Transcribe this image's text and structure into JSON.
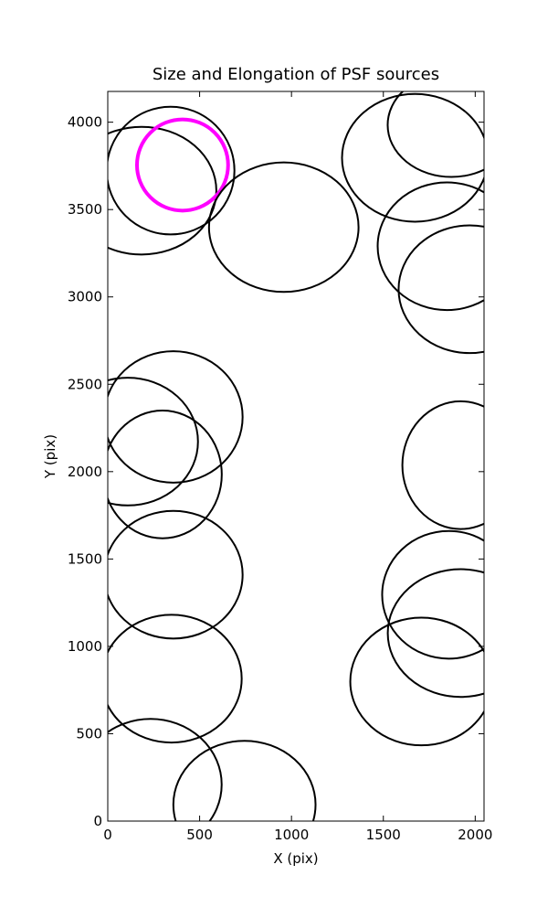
{
  "chart_data": {
    "type": "ellipse",
    "title": "Size and Elongation of PSF sources",
    "xlabel": "X (pix)",
    "ylabel": "Y (pix)",
    "x": [
      342,
      184,
      407,
      958,
      1672,
      1871,
      1846,
      1970,
      357,
      109,
      298,
      1921,
      357,
      1856,
      1921,
      347,
      1707,
      233,
      744
    ],
    "y": [
      3723,
      3608,
      3755,
      3399,
      3796,
      3984,
      3290,
      3044,
      2313,
      2172,
      1984,
      2037,
      1410,
      1295,
      1076,
      815,
      799,
      209,
      94
    ],
    "width": [
      695,
      814,
      496,
      814,
      794,
      695,
      754,
      774,
      754,
      764,
      645,
      635,
      754,
      725,
      794,
      764,
      774,
      774,
      774
    ],
    "height": [
      731,
      731,
      522,
      741,
      731,
      595,
      731,
      731,
      752,
      731,
      731,
      731,
      731,
      731,
      731,
      731,
      731,
      752,
      731
    ],
    "colors": [
      "#000000",
      "#000000",
      "#ff00ff",
      "#000000",
      "#000000",
      "#000000",
      "#000000",
      "#000000",
      "#000000",
      "#000000",
      "#000000",
      "#000000",
      "#000000",
      "#000000",
      "#000000",
      "#000000",
      "#000000",
      "#000000",
      "#000000"
    ],
    "linewidths": [
      2,
      2,
      4,
      2,
      2,
      2,
      2,
      2,
      2,
      2,
      2,
      2,
      2,
      2,
      2,
      2,
      2,
      2,
      2
    ],
    "xlim": [
      0,
      2048
    ],
    "ylim": [
      0,
      4176
    ],
    "xticks": [
      0,
      500,
      1000,
      1500,
      2000
    ],
    "yticks": [
      0,
      500,
      1000,
      1500,
      2000,
      2500,
      3000,
      3500,
      4000
    ]
  }
}
